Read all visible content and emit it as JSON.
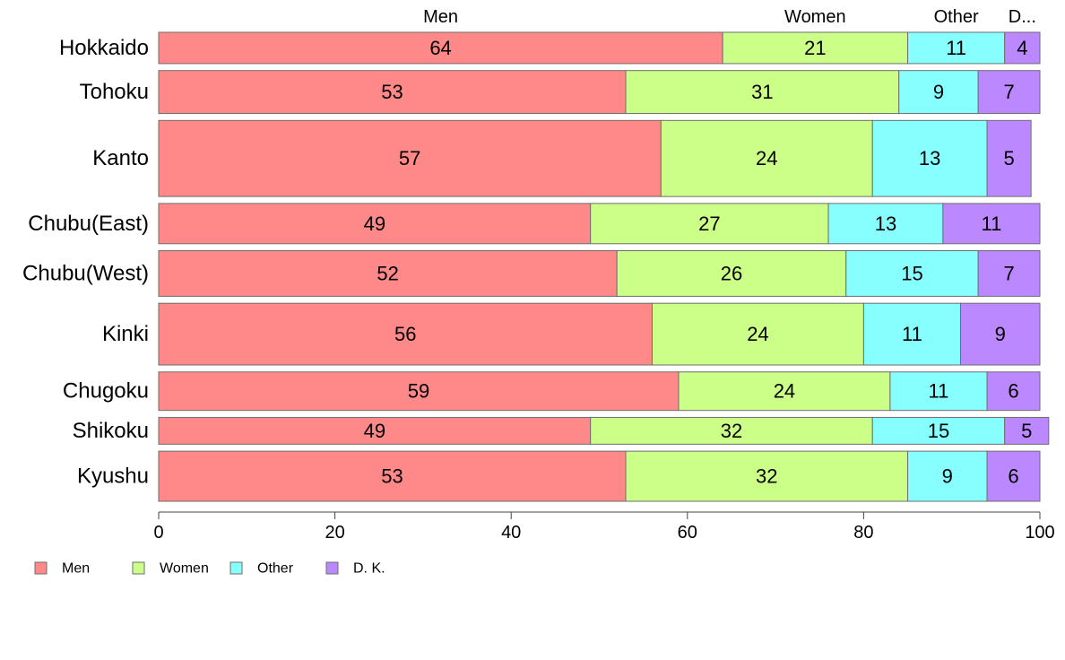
{
  "chart_data": {
    "type": "bar",
    "orientation": "horizontal",
    "stacked": true,
    "categories": [
      "Hokkaido",
      "Tohoku",
      "Kanto",
      "Chubu(East)",
      "Chubu(West)",
      "Kinki",
      "Chugoku",
      "Shikoku",
      "Kyushu"
    ],
    "series": [
      {
        "name": "Men",
        "color": "#ff8888",
        "values": [
          64,
          53,
          57,
          49,
          52,
          56,
          59,
          49,
          53
        ]
      },
      {
        "name": "Women",
        "color": "#ccff88",
        "values": [
          21,
          31,
          24,
          27,
          26,
          24,
          24,
          32,
          32
        ]
      },
      {
        "name": "Other",
        "color": "#88ffff",
        "values": [
          11,
          9,
          13,
          13,
          15,
          11,
          11,
          15,
          9
        ]
      },
      {
        "name": "D. K.",
        "color": "#bb88ff",
        "values": [
          4,
          7,
          5,
          11,
          7,
          9,
          6,
          5,
          6
        ]
      }
    ],
    "relative_widths": [
      35,
      48,
      85,
      45,
      51,
      69,
      43,
      30,
      56
    ],
    "top_labels": [
      "Men",
      "Women",
      "Other",
      "D..."
    ],
    "xlim": [
      0,
      100
    ],
    "xticks": [
      "0",
      "20",
      "40",
      "60",
      "80",
      "100"
    ],
    "grid": false,
    "legend_position": "bottom-left",
    "legend_labels": [
      "Men",
      "Women",
      "Other",
      "D. K."
    ]
  }
}
